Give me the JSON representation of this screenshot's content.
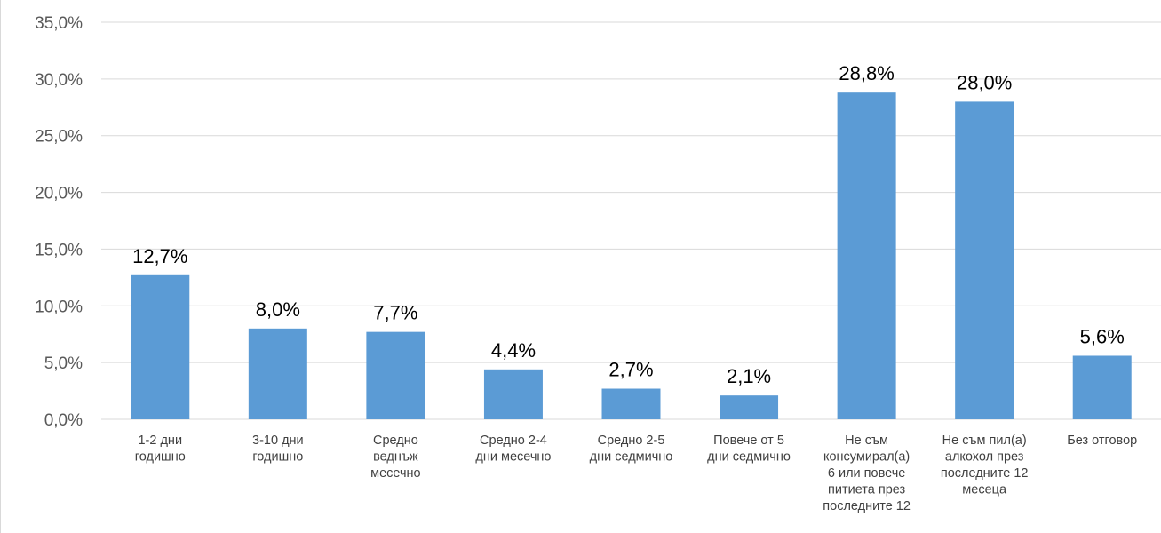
{
  "chart_data": {
    "type": "bar",
    "categories": [
      [
        "1-2 дни",
        "годишно"
      ],
      [
        "3-10 дни",
        "годишно"
      ],
      [
        "Средно",
        "веднъж",
        "месечно"
      ],
      [
        "Средно 2-4",
        "дни месечно"
      ],
      [
        "Средно 2-5",
        "дни седмично"
      ],
      [
        "Повече от 5",
        "дни седмично"
      ],
      [
        "Не съм",
        "консумирал(а)",
        "6 или повече",
        "питиета през",
        "последните 12"
      ],
      [
        "Не съм пил(а)",
        "алкохол през",
        "последните 12",
        "месеца"
      ],
      [
        "Без отговор"
      ]
    ],
    "values": [
      12.7,
      8.0,
      7.7,
      4.4,
      2.7,
      2.1,
      28.8,
      28.0,
      5.6
    ],
    "data_labels": [
      "12,7%",
      "8,0%",
      "7,7%",
      "4,4%",
      "2,7%",
      "2,1%",
      "28,8%",
      "28,0%",
      "5,6%"
    ],
    "y_ticks": [
      0,
      5,
      10,
      15,
      20,
      25,
      30,
      35
    ],
    "y_tick_labels": [
      "0,0%",
      "5,0%",
      "10,0%",
      "15,0%",
      "20,0%",
      "25,0%",
      "30,0%",
      "35,0%"
    ],
    "ylim": [
      0,
      35
    ],
    "grid": true,
    "bar_color": "#5b9bd5",
    "title": "",
    "xlabel": "",
    "ylabel": ""
  }
}
